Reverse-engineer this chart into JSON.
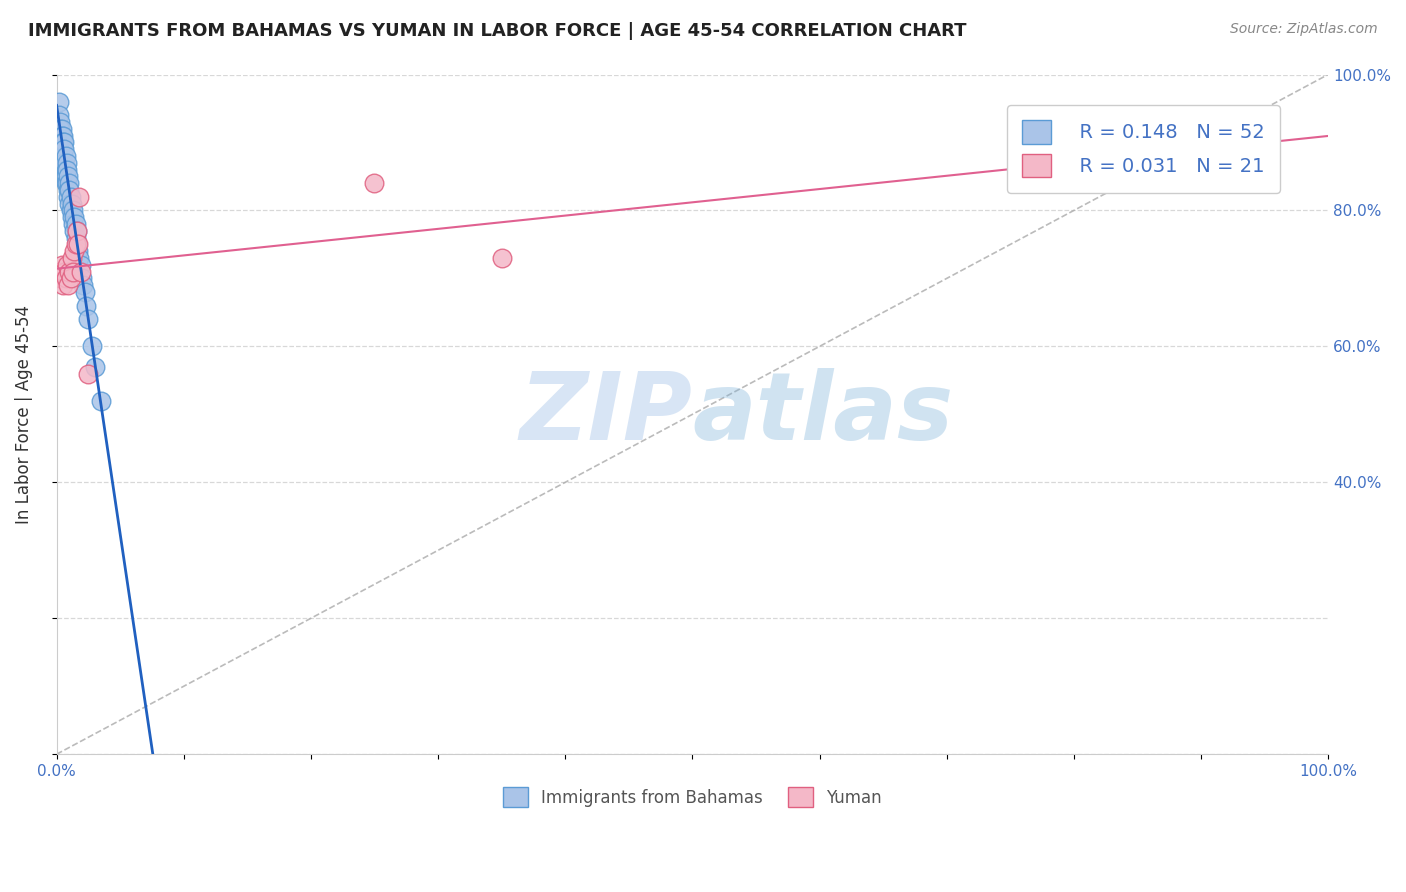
{
  "title": "IMMIGRANTS FROM BAHAMAS VS YUMAN IN LABOR FORCE | AGE 45-54 CORRELATION CHART",
  "source": "Source: ZipAtlas.com",
  "ylabel": "In Labor Force | Age 45-54",
  "xlabel": "",
  "xlim": [
    0.0,
    1.0
  ],
  "ylim": [
    0.0,
    1.0
  ],
  "x_ticks": [
    0.0,
    0.1,
    0.2,
    0.3,
    0.4,
    0.5,
    0.6,
    0.7,
    0.8,
    0.9,
    1.0
  ],
  "y_ticks": [
    0.0,
    0.2,
    0.4,
    0.6,
    0.8,
    1.0
  ],
  "x_tick_labels": [
    "0.0%",
    "",
    "",
    "",
    "",
    "",
    "",
    "",
    "",
    "",
    "100.0%"
  ],
  "y_tick_labels": [
    "",
    "",
    "40.0%",
    "60.0%",
    "80.0%",
    "100.0%"
  ],
  "bahamas_color": "#aac4e8",
  "yuman_color": "#f4b8c8",
  "bahamas_edge_color": "#5b9bd5",
  "yuman_edge_color": "#e06080",
  "trend_bahamas_color": "#2060c0",
  "trend_yuman_color": "#e06090",
  "diagonal_color": "#aaaaaa",
  "grid_color": "#d8d8d8",
  "watermark_color": "#b8d0ee",
  "legend_r_bahamas": "R = 0.148",
  "legend_n_bahamas": "N = 52",
  "legend_r_yuman": "R = 0.031",
  "legend_n_yuman": "N = 21",
  "legend_label_bahamas": "Immigrants from Bahamas",
  "legend_label_yuman": "Yuman",
  "bahamas_x": [
    0.002,
    0.002,
    0.003,
    0.003,
    0.003,
    0.004,
    0.004,
    0.004,
    0.004,
    0.005,
    0.005,
    0.005,
    0.005,
    0.006,
    0.006,
    0.006,
    0.007,
    0.007,
    0.007,
    0.007,
    0.008,
    0.008,
    0.008,
    0.009,
    0.009,
    0.009,
    0.01,
    0.01,
    0.01,
    0.011,
    0.011,
    0.012,
    0.012,
    0.013,
    0.013,
    0.014,
    0.014,
    0.015,
    0.015,
    0.016,
    0.016,
    0.017,
    0.018,
    0.019,
    0.02,
    0.021,
    0.022,
    0.023,
    0.025,
    0.028,
    0.03,
    0.035
  ],
  "bahamas_y": [
    0.96,
    0.94,
    0.93,
    0.92,
    0.9,
    0.92,
    0.91,
    0.89,
    0.88,
    0.91,
    0.9,
    0.88,
    0.87,
    0.9,
    0.89,
    0.87,
    0.88,
    0.86,
    0.85,
    0.84,
    0.87,
    0.86,
    0.84,
    0.85,
    0.83,
    0.82,
    0.84,
    0.83,
    0.81,
    0.82,
    0.8,
    0.81,
    0.79,
    0.8,
    0.78,
    0.79,
    0.77,
    0.78,
    0.76,
    0.77,
    0.75,
    0.74,
    0.73,
    0.72,
    0.7,
    0.69,
    0.68,
    0.66,
    0.64,
    0.6,
    0.57,
    0.52
  ],
  "yuman_x": [
    0.002,
    0.003,
    0.004,
    0.005,
    0.006,
    0.007,
    0.008,
    0.009,
    0.01,
    0.011,
    0.012,
    0.013,
    0.014,
    0.015,
    0.016,
    0.017,
    0.018,
    0.019,
    0.25,
    0.35,
    0.025
  ],
  "yuman_y": [
    0.71,
    0.7,
    0.72,
    0.69,
    0.71,
    0.7,
    0.72,
    0.69,
    0.71,
    0.7,
    0.73,
    0.71,
    0.74,
    0.75,
    0.77,
    0.75,
    0.82,
    0.71,
    0.84,
    0.73,
    0.56
  ]
}
